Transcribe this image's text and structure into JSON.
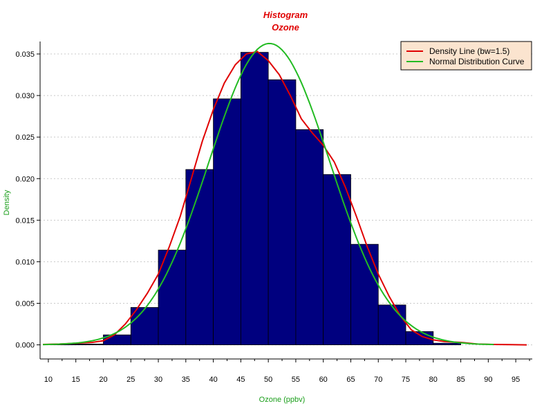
{
  "chart_data": {
    "type": "bar",
    "title": "Histogram",
    "subtitle": "Ozone",
    "xlabel": "Ozone (ppbv)",
    "ylabel": "Density",
    "xlim": [
      8.5,
      98
    ],
    "ylim": [
      -0.0017,
      0.0365
    ],
    "x_ticks": [
      10,
      15,
      20,
      25,
      30,
      35,
      40,
      45,
      50,
      55,
      60,
      65,
      70,
      75,
      80,
      85,
      90,
      95
    ],
    "y_ticks": [
      "0.000",
      "0.005",
      "0.010",
      "0.015",
      "0.020",
      "0.025",
      "0.030",
      "0.035"
    ],
    "y_tick_values": [
      0,
      0.005,
      0.01,
      0.015,
      0.02,
      0.025,
      0.03,
      0.035
    ],
    "grid": "horizontal dotted",
    "legend_position": "top-right",
    "bins": {
      "edges": [
        10,
        15,
        20,
        25,
        30,
        35,
        40,
        45,
        50,
        55,
        60,
        65,
        70,
        75,
        80,
        85
      ],
      "values": [
        0.0001,
        0.0001,
        0.0012,
        0.0045,
        0.0114,
        0.0211,
        0.0296,
        0.0352,
        0.0319,
        0.0259,
        0.0205,
        0.0121,
        0.0048,
        0.0016,
        0.0002
      ]
    },
    "series": [
      {
        "name": "Density Line (bw=1.5)",
        "color": "#e00000",
        "x": [
          9,
          12,
          15,
          18,
          20,
          22,
          24,
          26,
          28,
          30,
          32,
          34,
          36,
          38,
          40,
          42,
          44,
          46,
          48,
          50,
          52,
          54,
          56,
          58,
          60,
          62,
          64,
          66,
          68,
          70,
          72,
          74,
          76,
          78,
          80,
          82,
          85,
          88,
          91,
          94,
          97
        ],
        "y": [
          5e-05,
          0.0001,
          0.0002,
          0.0003,
          0.0005,
          0.0012,
          0.0025,
          0.0042,
          0.0062,
          0.0085,
          0.0118,
          0.0155,
          0.02,
          0.0245,
          0.0283,
          0.0315,
          0.0337,
          0.035,
          0.0353,
          0.0342,
          0.0325,
          0.03,
          0.0272,
          0.0255,
          0.024,
          0.022,
          0.019,
          0.0155,
          0.0118,
          0.0085,
          0.0058,
          0.0035,
          0.0018,
          0.001,
          0.0006,
          0.0004,
          0.0003,
          0.0001,
          5e-05,
          2e-05,
          0.0
        ]
      },
      {
        "name": "Normal Distribution Curve",
        "color": "#22bb22",
        "mean": 50.2,
        "sd": 11.0,
        "x_range": [
          9,
          91
        ]
      }
    ]
  }
}
